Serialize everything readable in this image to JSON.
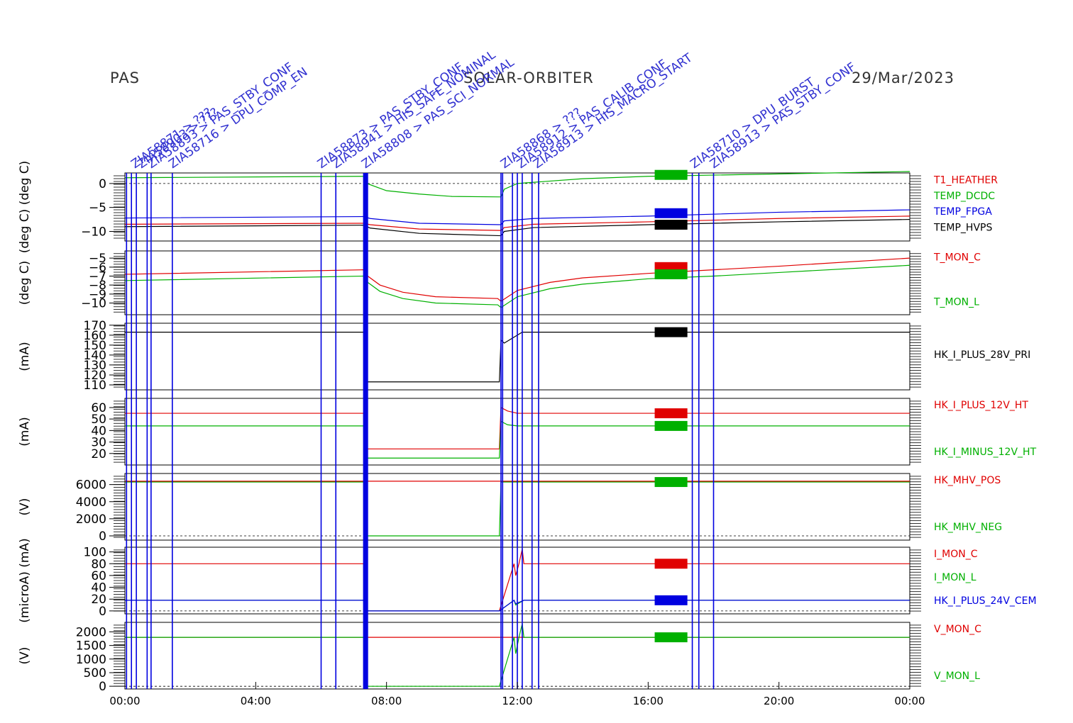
{
  "header": {
    "left": "PAS",
    "center": "SOLAR-ORBITER",
    "date": "29/Mar/2023"
  },
  "colors": {
    "red": "#e00000",
    "green": "#00b000",
    "blue": "#0000e0",
    "black": "#000000",
    "annotation": "#3030d0"
  },
  "chart_data": {
    "type": "line",
    "x_axis": {
      "unit": "hours",
      "range": [
        0,
        24
      ],
      "ticks": [
        0,
        4,
        8,
        12,
        16,
        20,
        24
      ],
      "tick_labels": [
        "00:00",
        "04:00",
        "08:00",
        "12:00",
        "16:00",
        "20:00",
        "00:00"
      ]
    },
    "command_markers": [
      0.05,
      0.2,
      0.35,
      0.68,
      0.8,
      1.45,
      6.0,
      6.45,
      7.3,
      7.33,
      7.36,
      7.39,
      7.42,
      11.5,
      11.55,
      11.85,
      12.0,
      12.15,
      12.45,
      12.65,
      17.35,
      17.55,
      18.0
    ],
    "command_annotations": [
      {
        "x": 0.3,
        "text": "ZIA58871 > ???"
      },
      {
        "x": 0.5,
        "text": "ZIA58903 > ???"
      },
      {
        "x": 0.8,
        "text": "ZIA58893 > PAS_STBY_CONF"
      },
      {
        "x": 1.45,
        "text": "ZIA58716 > DPU_COMP_EN"
      },
      {
        "x": 6.0,
        "text": "ZIA58873 > PAS_STBY_CONF"
      },
      {
        "x": 6.45,
        "text": "ZIA58941 > HIS_SAFE_NOMINAL"
      },
      {
        "x": 7.35,
        "text": "ZIA58808 > PAS_SCI_NORMAL"
      },
      {
        "x": 11.6,
        "text": "ZIA58868 > ???"
      },
      {
        "x": 12.1,
        "text": "ZIA58912 > PAS_CALIB_CONF"
      },
      {
        "x": 12.6,
        "text": "ZIA58913 > HIS_MACRO_START"
      },
      {
        "x": 17.4,
        "text": "ZIA58710 > DPU_BURST"
      },
      {
        "x": 18.0,
        "text": "ZIA58913 > PAS_STBY_CONF"
      }
    ],
    "panels": [
      {
        "ylabel": "(deg C) (deg C)",
        "yrange": [
          -12,
          2.2
        ],
        "yticks": [
          0,
          -5,
          -10
        ],
        "ytick_labels": [
          "0",
          "−5",
          "−10"
        ],
        "zero_line": true,
        "series": [
          {
            "name": "T1_HEATHER",
            "color": "red",
            "x": [
              0,
              7.3,
              7.5,
              9,
              11.5,
              11.6,
              12.5,
              16,
              20,
              24
            ],
            "y": [
              -8.5,
              -8.3,
              -8.6,
              -9.5,
              -9.8,
              -9.2,
              -8.5,
              -8,
              -7.3,
              -6.8
            ],
            "legend_bar_y": null
          },
          {
            "name": "TEMP_DCDC",
            "color": "green",
            "x": [
              0,
              7.3,
              7.4,
              8,
              9,
              10,
              11.5,
              11.6,
              12,
              14,
              16,
              20,
              24
            ],
            "y": [
              1.2,
              1.5,
              0,
              -1.5,
              -2.2,
              -2.7,
              -2.8,
              -1.2,
              0,
              1,
              1.5,
              2,
              2.5
            ],
            "legend_bar_y": 1.8
          },
          {
            "name": "TEMP_FPGA",
            "color": "blue",
            "x": [
              0,
              7.3,
              7.5,
              9,
              11.5,
              11.6,
              12.5,
              16,
              20,
              24
            ],
            "y": [
              -7.2,
              -6.9,
              -7.3,
              -8.3,
              -8.6,
              -7.8,
              -7.3,
              -6.8,
              -6.0,
              -5.5
            ],
            "legend_bar_y": -6.2
          },
          {
            "name": "TEMP_HVPS",
            "color": "black",
            "x": [
              0,
              7.3,
              7.5,
              9,
              11.5,
              11.6,
              12.5,
              16,
              20,
              24
            ],
            "y": [
              -9,
              -8.7,
              -9.3,
              -10.4,
              -10.9,
              -10,
              -9.2,
              -8.6,
              -8.0,
              -7.5
            ],
            "legend_bar_y": -8.6
          }
        ]
      },
      {
        "ylabel": "(deg C)",
        "yrange": [
          -11.3,
          -4.2
        ],
        "yticks": [
          -5,
          -6,
          -7,
          -8,
          -9,
          -10
        ],
        "ytick_labels": [
          "−5",
          "−6",
          "−7",
          "−8",
          "−9",
          "−10"
        ],
        "zero_line": false,
        "series": [
          {
            "name": "T_MON_C",
            "color": "red",
            "x": [
              0,
              7.3,
              7.35,
              7.8,
              8.5,
              9.5,
              11.4,
              11.5,
              12,
              13,
              14,
              16,
              18,
              20,
              24
            ],
            "y": [
              -6.8,
              -6.3,
              -6.8,
              -8.0,
              -8.8,
              -9.3,
              -9.5,
              -9.8,
              -8.6,
              -7.7,
              -7.2,
              -6.7,
              -6.3,
              -5.9,
              -5.0
            ],
            "legend_bar_y": -6.0
          },
          {
            "name": "T_MON_L",
            "color": "green",
            "x": [
              0,
              7.3,
              7.35,
              7.8,
              8.5,
              9.5,
              11.4,
              11.5,
              12,
              13,
              14,
              16,
              18,
              20,
              24
            ],
            "y": [
              -7.5,
              -7.0,
              -7.5,
              -8.7,
              -9.5,
              -10.0,
              -10.2,
              -10.5,
              -9.3,
              -8.4,
              -7.9,
              -7.3,
              -7.0,
              -6.6,
              -5.8
            ],
            "legend_bar_y": -6.8
          }
        ]
      },
      {
        "ylabel": "(mA)",
        "yrange": [
          105,
          172
        ],
        "yticks": [
          170,
          160,
          150,
          140,
          130,
          120,
          110
        ],
        "ytick_labels": [
          "170",
          "160",
          "150",
          "140",
          "130",
          "120",
          "110"
        ],
        "zero_line": false,
        "series": [
          {
            "name": "HK_I_PLUS_28V_PRI",
            "color": "black",
            "x": [
              0,
              7.3,
              7.31,
              11.45,
              11.5,
              11.6,
              11.9,
              12.15,
              12.2,
              24
            ],
            "y": [
              163,
              163,
              113,
              113,
              155,
              152,
              158,
              163,
              163,
              163
            ],
            "legend_bar_y": 163
          }
        ]
      },
      {
        "ylabel": "(mA)",
        "yrange": [
          10,
          68
        ],
        "yticks": [
          60,
          50,
          40,
          30,
          20
        ],
        "ytick_labels": [
          "60",
          "50",
          "40",
          "30",
          "20"
        ],
        "zero_line": false,
        "series": [
          {
            "name": "HK_I_PLUS_12V_HT",
            "color": "red",
            "x": [
              0,
              7.3,
              7.31,
              11.45,
              11.5,
              11.7,
              12,
              24
            ],
            "y": [
              55,
              55,
              24,
              24,
              60,
              57,
              55,
              55
            ],
            "legend_bar_y": 55
          },
          {
            "name": "HK_I_MINUS_12V_HT",
            "color": "green",
            "x": [
              0,
              7.3,
              7.31,
              11.45,
              11.5,
              11.7,
              12,
              24
            ],
            "y": [
              44,
              44,
              16,
              16,
              48,
              45,
              44,
              44
            ],
            "legend_bar_y": 44
          }
        ]
      },
      {
        "ylabel": "(V)",
        "yrange": [
          -500,
          7300
        ],
        "yticks": [
          6000,
          4000,
          2000,
          0
        ],
        "ytick_labels": [
          "6000",
          "4000",
          "2000",
          "0"
        ],
        "zero_line": true,
        "series": [
          {
            "name": "HK_MHV_POS",
            "color": "red",
            "x": [
              0,
              24
            ],
            "y": [
              6400,
              6400
            ],
            "legend_bar_y": null
          },
          {
            "name": "HK_MHV_NEG",
            "color": "green",
            "x": [
              0,
              7.3,
              7.31,
              11.45,
              11.5,
              24
            ],
            "y": [
              6300,
              6300,
              0,
              0,
              6300,
              6300
            ],
            "legend_bar_y": 6300
          }
        ]
      },
      {
        "ylabel": "(microA) (mA)",
        "yrange": [
          -5,
          108
        ],
        "yticks": [
          100,
          80,
          60,
          40,
          20,
          0
        ],
        "ytick_labels": [
          "100",
          "80",
          "60",
          "40",
          "20",
          "0"
        ],
        "zero_line": true,
        "series": [
          {
            "name": "I_MON_C",
            "color": "red",
            "x": [
              0,
              7.3,
              7.31,
              11.45,
              11.9,
              11.95,
              12.05,
              12.15,
              12.2,
              24
            ],
            "y": [
              80,
              80,
              0,
              0,
              80,
              60,
              80,
              105,
              80,
              80
            ],
            "legend_bar_y": 80
          },
          {
            "name": "I_MON_L",
            "color": "green",
            "x": [
              0,
              7.3,
              7.31,
              11.45,
              11.9,
              11.95,
              12.2,
              24
            ],
            "y": [
              18,
              18,
              0,
              0,
              18,
              10,
              18,
              18
            ],
            "legend_bar_y": null
          },
          {
            "name": "HK_I_PLUS_24V_CEM",
            "color": "blue",
            "x": [
              0,
              7.3,
              7.31,
              11.45,
              11.9,
              11.95,
              12.2,
              24
            ],
            "y": [
              18,
              18,
              0,
              0,
              18,
              12,
              18,
              18
            ],
            "legend_bar_y": 18
          }
        ]
      },
      {
        "ylabel": "(V)",
        "yrange": [
          -100,
          2350
        ],
        "yticks": [
          2000,
          1500,
          1000,
          500,
          0
        ],
        "ytick_labels": [
          "2000",
          "1500",
          "1000",
          "500",
          "0"
        ],
        "zero_line": true,
        "series": [
          {
            "name": "V_MON_C",
            "color": "red",
            "x": [
              0,
              24
            ],
            "y": [
              1800,
              1800
            ],
            "legend_bar_y": null
          },
          {
            "name": "V_MON_L",
            "color": "green",
            "x": [
              0,
              7.3,
              7.31,
              11.45,
              11.9,
              11.95,
              12.05,
              12.15,
              12.2,
              24
            ],
            "y": [
              1800,
              1800,
              0,
              0,
              1800,
              1200,
              1800,
              2300,
              1800,
              1800
            ],
            "legend_bar_y": 1800
          }
        ]
      }
    ]
  }
}
